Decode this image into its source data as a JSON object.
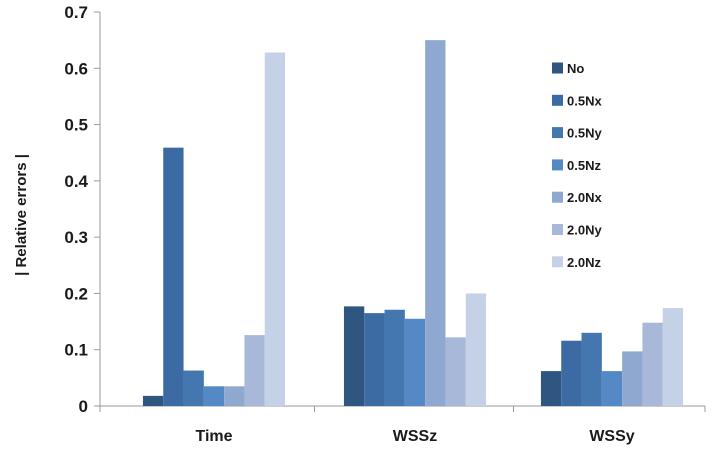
{
  "chart_data": {
    "type": "bar",
    "title": "",
    "xlabel": "",
    "ylabel": "| Relative errors |",
    "ylim": [
      0,
      0.7
    ],
    "yticks": [
      0,
      0.1,
      0.2,
      0.3,
      0.4,
      0.5,
      0.6,
      0.7
    ],
    "ytick_labels": [
      "0",
      "0.1",
      "0.2",
      "0.3",
      "0.4",
      "0.5",
      "0.6",
      "0.7"
    ],
    "grid": false,
    "legend_position": "right",
    "categories": [
      "Time",
      "WSSz",
      "WSSy"
    ],
    "series": [
      {
        "name": "No",
        "color": "#2f5581",
        "values": [
          0.018,
          0.177,
          0.062
        ]
      },
      {
        "name": "0.5Nx",
        "color": "#3c6aa3",
        "values": [
          0.459,
          0.165,
          0.116
        ]
      },
      {
        "name": "0.5Ny",
        "color": "#4476b0",
        "values": [
          0.063,
          0.171,
          0.13
        ]
      },
      {
        "name": "0.5Nz",
        "color": "#5589c6",
        "values": [
          0.035,
          0.155,
          0.062
        ]
      },
      {
        "name": "2.0Nx",
        "color": "#8ea8cf",
        "values": [
          0.035,
          0.65,
          0.097
        ]
      },
      {
        "name": "2.0Ny",
        "color": "#a8b8d8",
        "values": [
          0.126,
          0.122,
          0.148
        ]
      },
      {
        "name": "2.0Nz",
        "color": "#c5d1e6",
        "values": [
          0.628,
          0.2,
          0.174
        ]
      }
    ]
  }
}
